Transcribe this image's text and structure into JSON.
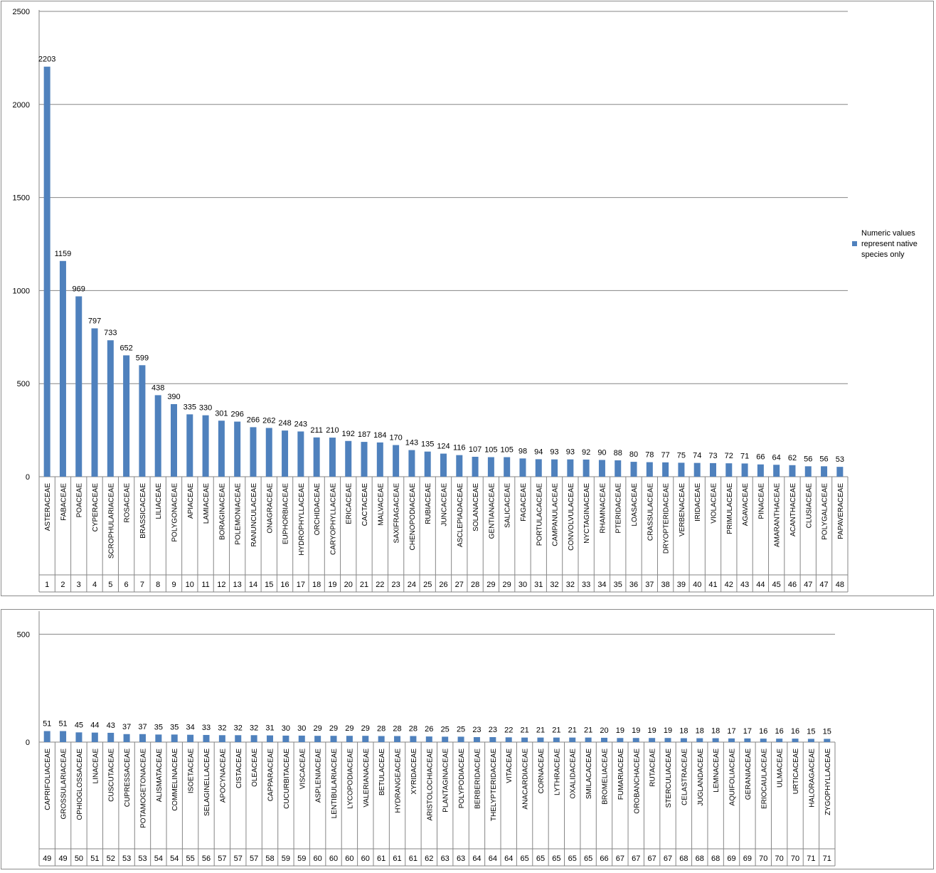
{
  "chart_data": [
    {
      "type": "bar",
      "legend": {
        "label": "Numeric values represent native species only",
        "position": "right"
      },
      "color": "#4f81bd",
      "ylim": [
        0,
        2500
      ],
      "yticks": [
        0,
        500,
        1000,
        1500,
        2000,
        2500
      ],
      "grid": true,
      "categories": [
        "ASTERACEAE",
        "FABACEAE",
        "POACEAE",
        "CYPERACEAE",
        "SCROPHULARIACEAE",
        "ROSACEAE",
        "BRASSICACEAE",
        "LILIACEAE",
        "POLYGONACEAE",
        "APIACEAE",
        "LAMIACEAE",
        "BORAGINACEAE",
        "POLEMONIACEAE",
        "RANUNCULACEAE",
        "ONAGRACEAE",
        "EUPHORBIACEAE",
        "HYDROPHYLLACEAE",
        "ORCHIDACEAE",
        "CARYOPHYLLACEAE",
        "ERICACEAE",
        "CACTACEAE",
        "MALVACEAE",
        "SAXIFRAGACEAE",
        "CHENOPODIACEAE",
        "RUBIACEAE",
        "JUNCACEAE",
        "ASCLEPIADACEAE",
        "SOLANACEAE",
        "GENTIANACEAE",
        "SALICACEAE",
        "FAGACEAE",
        "PORTULACACEAE",
        "CAMPANULACEAE",
        "CONVOLVULACEAE",
        "NYCTAGINACEAE",
        "RHAMNACEAE",
        "PTERIDACEAE",
        "LOASACEAE",
        "CRASSULACEAE",
        "DRYOPTERIDACEAE",
        "VERBENACEAE",
        "IRIDACEAE",
        "VIOLACEAE",
        "PRIMULACEAE",
        "AGAVACEAE",
        "PINACEAE",
        "AMARANTHACEAE",
        "ACANTHACEAE",
        "CLUSIACEAE",
        "POLYGALACEAE",
        "PAPAVERACEAE"
      ],
      "ranks": [
        "1",
        "2",
        "3",
        "4",
        "5",
        "6",
        "7",
        "8",
        "9",
        "10",
        "11",
        "12",
        "13",
        "14",
        "15",
        "16",
        "17",
        "18",
        "19",
        "20",
        "21",
        "22",
        "23",
        "24",
        "25",
        "26",
        "27",
        "28",
        "29",
        "29",
        "30",
        "31",
        "32",
        "32",
        "33",
        "34",
        "35",
        "36",
        "37",
        "38",
        "39",
        "40",
        "41",
        "42",
        "43",
        "44",
        "45",
        "46",
        "47",
        "47",
        "48"
      ],
      "values": [
        2203,
        1159,
        969,
        797,
        733,
        652,
        599,
        438,
        390,
        335,
        330,
        301,
        296,
        266,
        262,
        248,
        243,
        211,
        210,
        192,
        187,
        184,
        170,
        143,
        135,
        124,
        116,
        107,
        105,
        105,
        98,
        94,
        93,
        93,
        92,
        90,
        88,
        80,
        78,
        77,
        75,
        74,
        73,
        72,
        71,
        66,
        64,
        62,
        56,
        56,
        53
      ]
    },
    {
      "type": "bar",
      "color": "#4f81bd",
      "ylim": [
        0,
        600
      ],
      "yticks": [
        0,
        500
      ],
      "grid": true,
      "categories": [
        "CAPRIFOLIACEAE",
        "GROSSULARIACEAE",
        "OPHIOGLOSSACEAE",
        "LINACEAE",
        "CUSCUTACEAE",
        "CUPRESSACEAE",
        "POTAMOGETONACEAE",
        "ALISMATACEAE",
        "COMMELINACEAE",
        "ISOETACEAE",
        "SELAGINELLACEAE",
        "APOCYNACEAE",
        "CISTACEAE",
        "OLEACEAE",
        "CAPPARACEAE",
        "CUCURBITACEAE",
        "VISCACEAE",
        "ASPLENIACEAE",
        "LENTIBULARIACEAE",
        "LYCOPODIACEAE",
        "VALERIANACEAE",
        "BETULACEAE",
        "HYDRANGEACEAE",
        "XYRIDACEAE",
        "ARISTOLOCHIACEAE",
        "PLANTAGINACEAE",
        "POLYPODIACEAE",
        "BERBERIDACEAE",
        "THELYPTERIDACEAE",
        "VITACEAE",
        "ANACARDIACEAE",
        "CORNACEAE",
        "LYTHRACEAE",
        "OXALIDACEAE",
        "SMILACACEAE",
        "BROMELIACEAE",
        "FUMARIACEAE",
        "OROBANCHACEAE",
        "RUTACEAE",
        "STERCULIACEAE",
        "CELASTRACEAE",
        "JUGLANDACEAE",
        "LEMNACEAE",
        "AQUIFOLIACEAE",
        "GERANIACEAE",
        "ERIOCAULACEAE",
        "ULMACEAE",
        "URTICACEAE",
        "HALORAGACEAE",
        "ZYGOPHYLLACEAE"
      ],
      "ranks": [
        "49",
        "49",
        "50",
        "51",
        "52",
        "53",
        "53",
        "54",
        "54",
        "55",
        "56",
        "57",
        "57",
        "57",
        "58",
        "59",
        "59",
        "60",
        "60",
        "60",
        "60",
        "61",
        "61",
        "61",
        "62",
        "63",
        "63",
        "64",
        "64",
        "64",
        "65",
        "65",
        "65",
        "65",
        "65",
        "66",
        "67",
        "67",
        "67",
        "67",
        "68",
        "68",
        "68",
        "69",
        "69",
        "70",
        "70",
        "70",
        "71",
        "71"
      ],
      "values": [
        51,
        51,
        45,
        44,
        43,
        37,
        37,
        35,
        35,
        34,
        33,
        32,
        32,
        32,
        31,
        30,
        30,
        29,
        29,
        29,
        29,
        28,
        28,
        28,
        26,
        25,
        25,
        23,
        23,
        22,
        21,
        21,
        21,
        21,
        21,
        20,
        19,
        19,
        19,
        19,
        18,
        18,
        18,
        17,
        17,
        16,
        16,
        16,
        15,
        15
      ]
    }
  ]
}
